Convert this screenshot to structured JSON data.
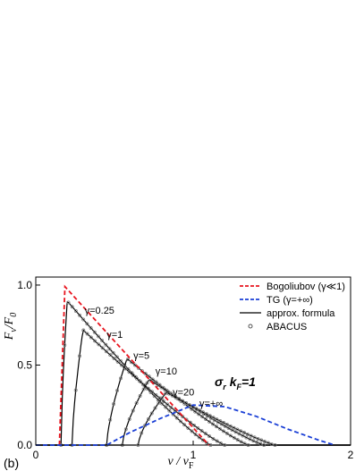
{
  "chart_data": {
    "type": "line",
    "panel_label": "(b)",
    "xlabel": "ν / ν_F",
    "ylabel": "F_ν / F_0",
    "xlim": [
      0,
      2
    ],
    "ylim": [
      0,
      1.05
    ],
    "x_ticks": [
      0,
      1,
      2
    ],
    "y_ticks": [
      0.0,
      0.5,
      1.0
    ],
    "x_tick_labels": [
      "0",
      "1",
      "2"
    ],
    "y_tick_labels": [
      "0.0",
      "0.5",
      "1.0"
    ],
    "parameter_text": "σ_r k_F=1",
    "legend_position": "top-right",
    "legend": [
      {
        "label": "Bogoliubov (γ≪1)",
        "style": "dashed",
        "color": "#e8141e"
      },
      {
        "label": "TG (γ=+∞)",
        "style": "dashed",
        "color": "#1a3fd6"
      },
      {
        "label": "approx. formula",
        "style": "solid",
        "color": "#000000"
      },
      {
        "label": "ABACUS",
        "style": "circles",
        "color": "#555555"
      }
    ],
    "series": [
      {
        "name": "Bogoliubov (γ≪1)",
        "style": "dashed",
        "color": "#e8141e",
        "x": [
          0.15,
          0.185,
          1.1
        ],
        "y": [
          0.0,
          0.99,
          0.0
        ]
      },
      {
        "name": "TG (γ=+∞)",
        "style": "dashed",
        "color": "#1a3fd6",
        "x": [
          0.0,
          0.45,
          0.6,
          0.8,
          1.0,
          1.2,
          1.4,
          1.6,
          1.8,
          1.9
        ],
        "y": [
          0.0,
          0.0,
          0.08,
          0.17,
          0.25,
          0.24,
          0.18,
          0.1,
          0.03,
          0.0
        ]
      }
    ],
    "gamma_curves": [
      {
        "label": "γ=0.25",
        "x0": 0.16,
        "xp": 0.2,
        "yp": 0.9,
        "x1": 1.11
      },
      {
        "label": "γ=1",
        "x0": 0.23,
        "xp": 0.3,
        "yp": 0.72,
        "x1": 1.2
      },
      {
        "label": "γ=5",
        "x0": 0.45,
        "xp": 0.58,
        "yp": 0.54,
        "x1": 1.35
      },
      {
        "label": "γ=10",
        "x0": 0.55,
        "xp": 0.72,
        "yp": 0.41,
        "x1": 1.45
      },
      {
        "label": "γ=20",
        "x0": 0.65,
        "xp": 0.83,
        "yp": 0.33,
        "x1": 1.52
      }
    ],
    "annotations": [
      {
        "text": "γ=0.25",
        "x": 0.31,
        "y": 0.82
      },
      {
        "text": "γ=1",
        "x": 0.45,
        "y": 0.67
      },
      {
        "text": "γ=5",
        "x": 0.62,
        "y": 0.54
      },
      {
        "text": "γ=10",
        "x": 0.76,
        "y": 0.44
      },
      {
        "text": "γ=20",
        "x": 0.87,
        "y": 0.31
      },
      {
        "text": "γ=+∞",
        "x": 1.04,
        "y": 0.24
      }
    ]
  }
}
